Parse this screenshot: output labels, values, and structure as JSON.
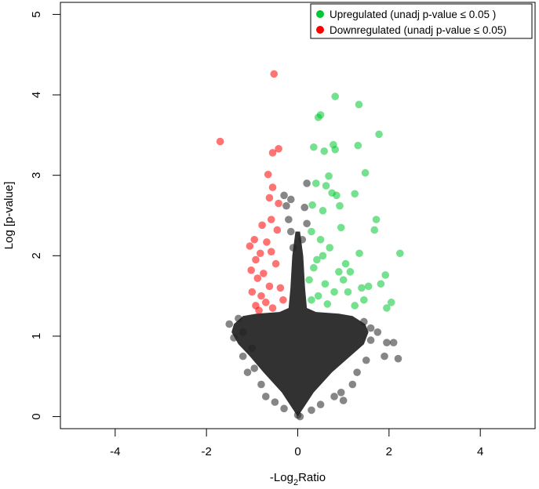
{
  "chart_data": {
    "type": "scatter",
    "title": "",
    "xlabel_main": "-Log",
    "xlabel_sub": "2",
    "xlabel_tail": "Ratio",
    "ylabel": "Log [p-value]",
    "xlim": [
      -5.2,
      5.2
    ],
    "ylim": [
      -0.15,
      5.15
    ],
    "xticks": [
      -4,
      -2,
      0,
      2,
      4
    ],
    "yticks": [
      0,
      1,
      2,
      3,
      4,
      5
    ],
    "xtick_labels": [
      "-4",
      "-2",
      "0",
      "2",
      "4"
    ],
    "ytick_labels": [
      "0",
      "1",
      "2",
      "3",
      "4",
      "5"
    ],
    "grid": false,
    "legend_position": "top-right",
    "legend": [
      {
        "label": "Upregulated (unadj p-value ≤ 0.05 )",
        "color": "#00c832"
      },
      {
        "label": "Downregulated (unadj p-value ≤ 0.05)",
        "color": "#ff0000"
      }
    ],
    "series": [
      {
        "name": "Upregulated (unadj p-value ≤ 0.05 )",
        "color": "#00c832",
        "points": [
          [
            0.82,
            3.98
          ],
          [
            1.34,
            3.88
          ],
          [
            0.5,
            3.75
          ],
          [
            0.45,
            3.72
          ],
          [
            1.78,
            3.51
          ],
          [
            0.78,
            3.38
          ],
          [
            1.32,
            3.37
          ],
          [
            0.35,
            3.35
          ],
          [
            0.82,
            3.32
          ],
          [
            0.58,
            3.3
          ],
          [
            1.48,
            3.03
          ],
          [
            0.68,
            2.99
          ],
          [
            0.4,
            2.9
          ],
          [
            0.62,
            2.87
          ],
          [
            0.75,
            2.78
          ],
          [
            1.25,
            2.77
          ],
          [
            0.32,
            2.63
          ],
          [
            0.85,
            2.75
          ],
          [
            0.55,
            2.56
          ],
          [
            0.92,
            2.62
          ],
          [
            1.72,
            2.45
          ],
          [
            1.68,
            2.32
          ],
          [
            0.95,
            2.35
          ],
          [
            2.24,
            2.03
          ],
          [
            1.35,
            2.03
          ],
          [
            1.92,
            1.76
          ],
          [
            1.55,
            1.62
          ],
          [
            1.1,
            1.55
          ],
          [
            1.95,
            1.35
          ],
          [
            1.82,
            1.65
          ],
          [
            2.05,
            1.42
          ],
          [
            1.45,
            1.45
          ],
          [
            1.25,
            1.38
          ],
          [
            0.3,
            2.3
          ],
          [
            0.5,
            2.2
          ],
          [
            0.7,
            2.1
          ],
          [
            0.42,
            1.95
          ],
          [
            1.05,
            1.9
          ],
          [
            0.9,
            1.8
          ],
          [
            1.0,
            1.7
          ],
          [
            0.35,
            1.85
          ],
          [
            0.6,
            1.65
          ],
          [
            0.8,
            1.55
          ],
          [
            0.25,
            1.7
          ],
          [
            0.45,
            1.5
          ],
          [
            1.15,
            1.8
          ],
          [
            1.4,
            1.6
          ],
          [
            0.55,
            2.0
          ],
          [
            0.65,
            1.4
          ],
          [
            0.3,
            1.45
          ]
        ]
      },
      {
        "name": "Downregulated (unadj p-value ≤ 0.05)",
        "color": "#ff0000",
        "points": [
          [
            -0.52,
            4.26
          ],
          [
            -1.7,
            3.42
          ],
          [
            -0.42,
            3.33
          ],
          [
            -0.55,
            3.28
          ],
          [
            -0.65,
            3.01
          ],
          [
            -0.55,
            2.85
          ],
          [
            -0.62,
            2.72
          ],
          [
            -0.42,
            2.65
          ],
          [
            -0.58,
            2.45
          ],
          [
            -0.78,
            2.38
          ],
          [
            -0.95,
            2.2
          ],
          [
            -0.45,
            2.32
          ],
          [
            -1.05,
            2.12
          ],
          [
            -0.68,
            2.17
          ],
          [
            -0.82,
            2.03
          ],
          [
            -0.92,
            1.95
          ],
          [
            -0.58,
            2.05
          ],
          [
            -1.02,
            1.82
          ],
          [
            -0.75,
            1.78
          ],
          [
            -0.88,
            1.72
          ],
          [
            -0.62,
            1.62
          ],
          [
            -1.0,
            1.55
          ],
          [
            -0.8,
            1.5
          ],
          [
            -0.7,
            1.42
          ],
          [
            -0.92,
            1.38
          ],
          [
            -0.55,
            1.35
          ],
          [
            -0.85,
            1.32
          ],
          [
            -0.48,
            1.9
          ],
          [
            -0.38,
            1.6
          ],
          [
            -0.32,
            1.45
          ]
        ]
      },
      {
        "name": "",
        "color": "#222222",
        "points": [
          [
            -0.3,
            2.75
          ],
          [
            -0.25,
            2.62
          ],
          [
            -0.15,
            2.7
          ],
          [
            0.2,
            2.9
          ],
          [
            0.15,
            2.6
          ],
          [
            -0.2,
            2.45
          ],
          [
            0.2,
            2.4
          ],
          [
            -0.15,
            2.3
          ],
          [
            0.1,
            2.2
          ],
          [
            -0.1,
            2.1
          ],
          [
            -1.3,
            1.22
          ],
          [
            -1.5,
            1.15
          ],
          [
            -1.2,
            1.05
          ],
          [
            -1.4,
            0.98
          ],
          [
            -1.0,
            0.85
          ],
          [
            -1.2,
            0.75
          ],
          [
            -0.95,
            0.6
          ],
          [
            -1.1,
            0.55
          ],
          [
            -0.8,
            0.4
          ],
          [
            -0.7,
            0.25
          ],
          [
            1.45,
            1.18
          ],
          [
            1.6,
            1.1
          ],
          [
            1.75,
            1.05
          ],
          [
            1.6,
            0.95
          ],
          [
            1.95,
            0.92
          ],
          [
            2.1,
            0.92
          ],
          [
            2.2,
            0.72
          ],
          [
            1.9,
            0.75
          ],
          [
            1.5,
            0.7
          ],
          [
            1.3,
            0.55
          ],
          [
            1.2,
            0.4
          ],
          [
            0.95,
            0.3
          ],
          [
            0.8,
            0.25
          ],
          [
            0.5,
            0.15
          ],
          [
            1.0,
            0.2
          ],
          [
            -0.5,
            0.18
          ],
          [
            -0.3,
            0.1
          ],
          [
            0.3,
            0.08
          ],
          [
            0.0,
            0.02
          ],
          [
            0.05,
            0.0
          ]
        ]
      }
    ],
    "density_core": {
      "color": "#222222",
      "outline_right": [
        [
          0.0,
          0.0
        ],
        [
          0.35,
          0.3
        ],
        [
          0.75,
          0.55
        ],
        [
          1.15,
          0.75
        ],
        [
          1.45,
          0.9
        ],
        [
          1.55,
          1.05
        ],
        [
          1.48,
          1.15
        ],
        [
          1.2,
          1.25
        ],
        [
          0.9,
          1.28
        ],
        [
          0.4,
          1.3
        ],
        [
          0.2,
          1.35
        ],
        [
          0.16,
          1.6
        ],
        [
          0.12,
          2.0
        ],
        [
          0.05,
          2.3
        ]
      ],
      "outline_left": [
        [
          -0.05,
          2.3
        ],
        [
          -0.12,
          2.0
        ],
        [
          -0.16,
          1.6
        ],
        [
          -0.2,
          1.35
        ],
        [
          -0.4,
          1.3
        ],
        [
          -0.9,
          1.28
        ],
        [
          -1.2,
          1.25
        ],
        [
          -1.4,
          1.15
        ],
        [
          -1.45,
          1.05
        ],
        [
          -1.3,
          0.9
        ],
        [
          -1.05,
          0.75
        ],
        [
          -0.75,
          0.55
        ],
        [
          -0.35,
          0.3
        ],
        [
          0.0,
          0.0
        ]
      ]
    }
  }
}
